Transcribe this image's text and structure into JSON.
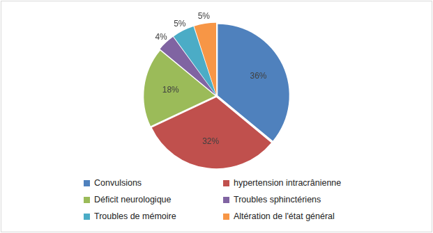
{
  "chart_data": {
    "type": "pie",
    "categories": [
      "Convulsions",
      "hypertension intracrânienne",
      "Déficit neurologique",
      "Troubles sphinctériens",
      "Troubles de mémoire",
      "Altération de l'état général"
    ],
    "values": [
      36,
      32,
      18,
      4,
      5,
      5
    ],
    "value_labels": [
      "36%",
      "32%",
      "18%",
      "4%",
      "5%",
      "5%"
    ],
    "colors": [
      "#4f81bd",
      "#c0504d",
      "#9bbb59",
      "#8064a2",
      "#4bacc6",
      "#f79646"
    ],
    "data_labels": true,
    "legend": "bottom"
  }
}
